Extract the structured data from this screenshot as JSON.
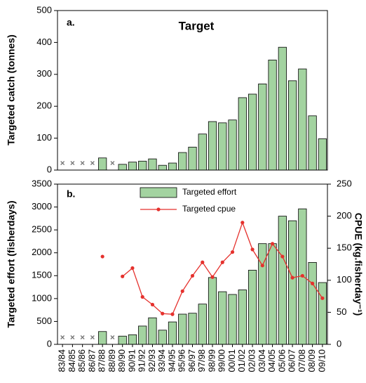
{
  "chart_data": [
    {
      "type": "bar",
      "panel_label": "a.",
      "title": "Target",
      "ylabel": "Targeted catch (tonnes)",
      "values": [
        null,
        null,
        null,
        null,
        38,
        null,
        18,
        25,
        28,
        35,
        15,
        22,
        55,
        72,
        113,
        152,
        148,
        157,
        227,
        238,
        270,
        345,
        385,
        280,
        317,
        170,
        98
      ],
      "color": "#a3d3a0",
      "ylim": [
        0,
        500
      ],
      "yticks": [
        0,
        100,
        200,
        300,
        400,
        500
      ]
    },
    {
      "type": "bar",
      "panel_label": "b.",
      "ylabel": "Targeted effort (fisherdays)",
      "y2label": "CPUE (kg.fisherday⁻¹)",
      "categories": [
        "83/84",
        "84/85",
        "85/86",
        "86/87",
        "87/88",
        "88/89",
        "89/90",
        "90/91",
        "91/92",
        "92/93",
        "93/94",
        "94/95",
        "95/96",
        "96/97",
        "97/98",
        "98/99",
        "99/00",
        "00/01",
        "01/02",
        "02/03",
        "03/04",
        "04/05",
        "05/06",
        "06/07",
        "07/08",
        "08/09",
        "09/10"
      ],
      "series": [
        {
          "name": "Targeted effort",
          "type": "bar",
          "color": "#a3d3a0",
          "values": [
            null,
            null,
            null,
            null,
            280,
            null,
            180,
            210,
            400,
            580,
            310,
            490,
            660,
            680,
            880,
            1460,
            1150,
            1090,
            1190,
            1620,
            2200,
            2200,
            2800,
            2700,
            2960,
            1790,
            1350
          ]
        },
        {
          "name": "Targeted cpue",
          "type": "line",
          "axis": "y2",
          "color": "#e5312d",
          "values": [
            null,
            null,
            null,
            null,
            137,
            null,
            106,
            119,
            74,
            62,
            48,
            47,
            83,
            107,
            128,
            105,
            128,
            144,
            190,
            148,
            123,
            157,
            137,
            104,
            107,
            95,
            72
          ]
        }
      ],
      "ylim": [
        0,
        3500
      ],
      "yticks": [
        0,
        500,
        1000,
        1500,
        2000,
        2500,
        3000,
        3500
      ],
      "y2lim": [
        0,
        250
      ],
      "y2ticks": [
        0,
        50,
        100,
        150,
        200,
        250
      ]
    }
  ]
}
